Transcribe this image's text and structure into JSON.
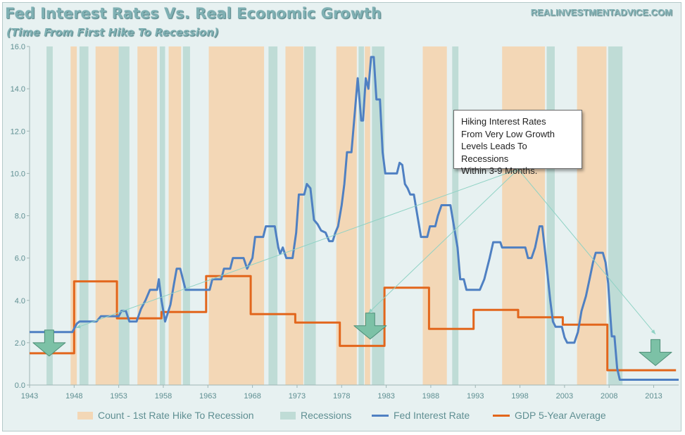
{
  "title": "Fed Interest Rates Vs. Real Economic Growth",
  "subtitle": "(Time From First Hike To Recession)",
  "source": "REALINVESTMENTADVICE.COM",
  "annotation": [
    "Hiking Interest Rates",
    "From Very Low Growth",
    "Levels Leads To Recessions",
    "Within 3-9 Months."
  ],
  "colors": {
    "background": "#e7f1f1",
    "hike_band": "#f3d7b6",
    "recession_band": "#bfdcd6",
    "fed_line": "#4f80c2",
    "gdp_line": "#e2661c",
    "arrow": "#7cc1a6",
    "annotation_line": "#8fd2c4",
    "tick_text": "#5f8f92"
  },
  "icons": {
    "arrow_markers": "down-arrow-icon"
  },
  "chart_data": {
    "type": "line",
    "xlim": [
      1943,
      2015.8
    ],
    "ylim": [
      0,
      16
    ],
    "x_ticks": [
      1943,
      1948,
      1953,
      1958,
      1963,
      1968,
      1973,
      1978,
      1983,
      1988,
      1993,
      1998,
      2003,
      2008,
      2013
    ],
    "y_ticks": [
      "0.0",
      "2.0",
      "4.0",
      "6.0",
      "8.0",
      "10.0",
      "12.0",
      "14.0",
      "16.0"
    ],
    "grid": false,
    "legend_position": "bottom",
    "legend": [
      "Count - 1st Rate Hike To Recession",
      "Recessions",
      "Fed Interest Rate",
      "GDP 5-Year Average"
    ],
    "hike_bands": [
      [
        1947.6,
        1948.3
      ],
      [
        1950.4,
        1953.0
      ],
      [
        1955.1,
        1957.3
      ],
      [
        1958.6,
        1960.0
      ],
      [
        1963.1,
        1969.3
      ],
      [
        1971.7,
        1973.7
      ],
      [
        1977.4,
        1979.7
      ],
      [
        1980.6,
        1981.2
      ],
      [
        1987.1,
        1989.8
      ],
      [
        1996.0,
        2000.8
      ],
      [
        2004.4,
        2007.7
      ]
    ],
    "recession_bands": [
      [
        1944.9,
        1945.6
      ],
      [
        1948.6,
        1949.6
      ],
      [
        1953.0,
        1954.2
      ],
      [
        1957.6,
        1958.2
      ],
      [
        1960.2,
        1961.0
      ],
      [
        1969.8,
        1970.8
      ],
      [
        1973.8,
        1975.1
      ],
      [
        1979.9,
        1980.5
      ],
      [
        1981.4,
        1982.8
      ],
      [
        1990.4,
        1991.1
      ],
      [
        2001.0,
        2001.9
      ],
      [
        2007.9,
        2009.5
      ]
    ],
    "series": [
      {
        "name": "Fed Interest Rate",
        "points": [
          [
            1943,
            2.5
          ],
          [
            1947.2,
            2.5
          ],
          [
            1947.8,
            2.5
          ],
          [
            1948.3,
            2.9
          ],
          [
            1948.6,
            3.0
          ],
          [
            1950.5,
            3.0
          ],
          [
            1951,
            3.25
          ],
          [
            1953,
            3.25
          ],
          [
            1953.3,
            3.5
          ],
          [
            1953.8,
            3.5
          ],
          [
            1954.2,
            3.0
          ],
          [
            1955.0,
            3.0
          ],
          [
            1955.5,
            3.6
          ],
          [
            1956,
            4.0
          ],
          [
            1956.5,
            4.5
          ],
          [
            1957.3,
            4.5
          ],
          [
            1957.5,
            5.0
          ],
          [
            1957.8,
            4.0
          ],
          [
            1958.2,
            3.0
          ],
          [
            1958.8,
            3.8
          ],
          [
            1959.2,
            4.8
          ],
          [
            1959.5,
            5.5
          ],
          [
            1959.9,
            5.5
          ],
          [
            1960.5,
            4.5
          ],
          [
            1963,
            4.5
          ],
          [
            1963.2,
            4.5
          ],
          [
            1963.5,
            5.0
          ],
          [
            1964.5,
            5.0
          ],
          [
            1964.8,
            5.5
          ],
          [
            1965.5,
            5.5
          ],
          [
            1965.8,
            6.0
          ],
          [
            1967,
            6.0
          ],
          [
            1967.4,
            5.5
          ],
          [
            1968,
            6.0
          ],
          [
            1968.3,
            7.0
          ],
          [
            1969.2,
            7.0
          ],
          [
            1969.5,
            7.5
          ],
          [
            1970.5,
            7.5
          ],
          [
            1970.9,
            6.5
          ],
          [
            1971.1,
            6.2
          ],
          [
            1971.4,
            6.5
          ],
          [
            1971.8,
            6.0
          ],
          [
            1972.5,
            6.0
          ],
          [
            1972.9,
            7.2
          ],
          [
            1973.2,
            9.0
          ],
          [
            1973.8,
            9.0
          ],
          [
            1974.1,
            9.5
          ],
          [
            1974.5,
            9.3
          ],
          [
            1974.9,
            7.8
          ],
          [
            1975.3,
            7.6
          ],
          [
            1975.7,
            7.3
          ],
          [
            1976.2,
            7.2
          ],
          [
            1976.6,
            6.8
          ],
          [
            1977.0,
            6.8
          ],
          [
            1977.3,
            7.2
          ],
          [
            1977.6,
            7.5
          ],
          [
            1978.0,
            8.5
          ],
          [
            1978.3,
            9.5
          ],
          [
            1978.6,
            11.0
          ],
          [
            1979.1,
            11.0
          ],
          [
            1979.5,
            13.0
          ],
          [
            1979.8,
            14.5
          ],
          [
            1980.1,
            13.0
          ],
          [
            1980.2,
            12.5
          ],
          [
            1980.4,
            12.5
          ],
          [
            1980.7,
            14.5
          ],
          [
            1981.0,
            14.0
          ],
          [
            1981.3,
            15.5
          ],
          [
            1981.6,
            15.5
          ],
          [
            1981.9,
            13.5
          ],
          [
            1982.3,
            13.5
          ],
          [
            1982.6,
            11.0
          ],
          [
            1982.9,
            10.0
          ],
          [
            1984.2,
            10.0
          ],
          [
            1984.5,
            10.5
          ],
          [
            1984.8,
            10.4
          ],
          [
            1985.1,
            9.5
          ],
          [
            1985.4,
            9.3
          ],
          [
            1985.7,
            9.0
          ],
          [
            1986.1,
            9.0
          ],
          [
            1986.5,
            8.0
          ],
          [
            1986.9,
            7.0
          ],
          [
            1987.6,
            7.0
          ],
          [
            1987.9,
            7.5
          ],
          [
            1988.5,
            7.5
          ],
          [
            1988.8,
            8.0
          ],
          [
            1989.2,
            8.5
          ],
          [
            1990.2,
            8.5
          ],
          [
            1990.6,
            7.5
          ],
          [
            1991.0,
            6.5
          ],
          [
            1991.3,
            5.0
          ],
          [
            1991.7,
            5.0
          ],
          [
            1992.0,
            4.5
          ],
          [
            1993.5,
            4.5
          ],
          [
            1994.0,
            5.0
          ],
          [
            1994.6,
            6.0
          ],
          [
            1995.0,
            6.75
          ],
          [
            1995.8,
            6.75
          ],
          [
            1996.0,
            6.5
          ],
          [
            1998.6,
            6.5
          ],
          [
            1998.9,
            6.0
          ],
          [
            1999.3,
            6.0
          ],
          [
            1999.7,
            6.5
          ],
          [
            2000.2,
            7.5
          ],
          [
            2000.5,
            7.5
          ],
          [
            2000.9,
            6.0
          ],
          [
            2001.4,
            4.0
          ],
          [
            2001.7,
            3.0
          ],
          [
            2002.0,
            2.75
          ],
          [
            2002.7,
            2.75
          ],
          [
            2003.0,
            2.25
          ],
          [
            2003.3,
            2.0
          ],
          [
            2004.1,
            2.0
          ],
          [
            2004.5,
            2.5
          ],
          [
            2004.9,
            3.5
          ],
          [
            2005.4,
            4.2
          ],
          [
            2005.8,
            5.0
          ],
          [
            2006.2,
            5.8
          ],
          [
            2006.5,
            6.25
          ],
          [
            2007.3,
            6.25
          ],
          [
            2007.6,
            5.8
          ],
          [
            2007.9,
            4.8
          ],
          [
            2008.1,
            3.5
          ],
          [
            2008.3,
            2.3
          ],
          [
            2008.6,
            2.3
          ],
          [
            2008.9,
            0.8
          ],
          [
            2009.2,
            0.25
          ],
          [
            2015.8,
            0.25
          ]
        ]
      },
      {
        "name": "GDP 5-Year Average",
        "points": [
          [
            1943,
            1.5
          ],
          [
            1948,
            1.5
          ],
          [
            1948,
            4.9
          ],
          [
            1952.8,
            4.9
          ],
          [
            1952.8,
            3.15
          ],
          [
            1957.8,
            3.15
          ],
          [
            1957.8,
            3.45
          ],
          [
            1962.8,
            3.45
          ],
          [
            1962.8,
            5.15
          ],
          [
            1967.8,
            5.15
          ],
          [
            1967.8,
            3.35
          ],
          [
            1972.8,
            3.35
          ],
          [
            1972.8,
            2.95
          ],
          [
            1977.8,
            2.95
          ],
          [
            1977.8,
            1.85
          ],
          [
            1982.8,
            1.85
          ],
          [
            1982.8,
            4.6
          ],
          [
            1987.8,
            4.6
          ],
          [
            1987.8,
            2.65
          ],
          [
            1992.8,
            2.65
          ],
          [
            1992.8,
            3.55
          ],
          [
            1997.8,
            3.55
          ],
          [
            1997.8,
            3.2
          ],
          [
            2002.8,
            3.2
          ],
          [
            2002.8,
            2.85
          ],
          [
            2007.8,
            2.85
          ],
          [
            2007.8,
            0.7
          ],
          [
            2015.5,
            0.7
          ]
        ]
      }
    ],
    "arrow_markers": [
      [
        1945.2,
        2.6
      ],
      [
        1981.2,
        3.4
      ],
      [
        2013.2,
        2.15
      ]
    ],
    "annotation_anchor": [
      1997.8,
      10.2
    ],
    "annotation_targets": [
      [
        1948.2,
        2.7
      ],
      [
        1981.0,
        3.4
      ],
      [
        2013.2,
        2.4
      ]
    ]
  }
}
